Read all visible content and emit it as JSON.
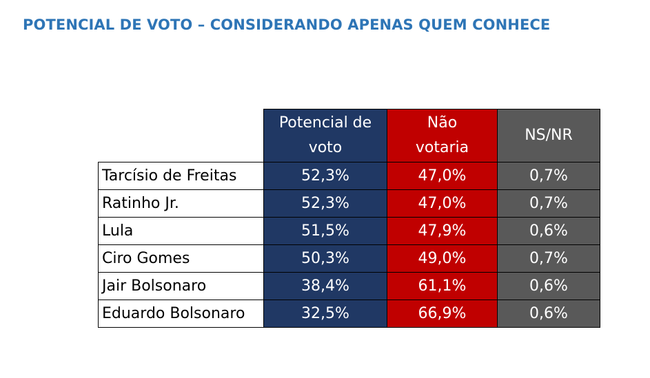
{
  "title": "POTENCIAL DE VOTO – CONSIDERANDO APENAS QUEM CONHECE",
  "colors": {
    "title": "#2e75b6",
    "potencial": "#203864",
    "nao_votaria": "#c00000",
    "ns_nr": "#595959"
  },
  "chart_data": {
    "type": "table",
    "columns": [
      "Potencial de voto",
      "Não votaria",
      "NS/NR"
    ],
    "header_lines": [
      [
        "Potencial de",
        "voto"
      ],
      [
        "Não",
        "votaria"
      ],
      [
        "NS/NR"
      ]
    ],
    "rows": [
      {
        "name": "Tarcísio de Freitas",
        "values": [
          "52,3%",
          "47,0%",
          "0,7%"
        ]
      },
      {
        "name": "Ratinho Jr.",
        "values": [
          "52,3%",
          "47,0%",
          "0,7%"
        ]
      },
      {
        "name": "Lula",
        "values": [
          "51,5%",
          "47,9%",
          "0,6%"
        ]
      },
      {
        "name": "Ciro Gomes",
        "values": [
          "50,3%",
          "49,0%",
          "0,7%"
        ]
      },
      {
        "name": "Jair Bolsonaro",
        "values": [
          "38,4%",
          "61,1%",
          "0,6%"
        ]
      },
      {
        "name": "Eduardo Bolsonaro",
        "values": [
          "32,5%",
          "66,9%",
          "0,6%"
        ]
      }
    ]
  }
}
